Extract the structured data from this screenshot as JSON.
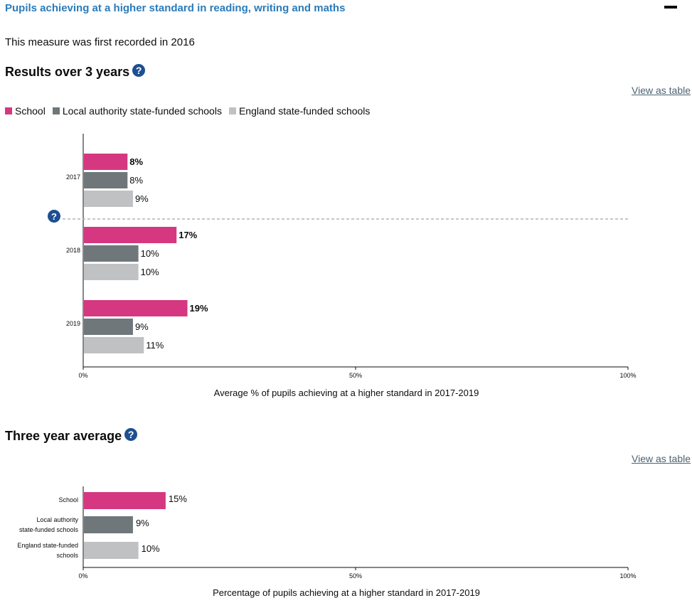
{
  "header": {
    "title": "Pupils achieving at a higher standard in reading, writing and maths"
  },
  "intro": "This measure was first recorded in 2016",
  "colors": {
    "school": "#d53880",
    "local_authority": "#6f777b",
    "england": "#bfc1c3",
    "link": "#2b7bb9",
    "help": "#1d4f91"
  },
  "results_section": {
    "title": "Results over 3 years",
    "help_icon": "question-circle-icon",
    "view_table": "View as table",
    "legend": [
      {
        "label": "School",
        "color": "#d53880"
      },
      {
        "label": "Local authority state-funded schools",
        "color": "#6f777b"
      },
      {
        "label": "England state-funded schools",
        "color": "#bfc1c3"
      }
    ]
  },
  "average_section": {
    "title": "Three year average",
    "help_icon": "question-circle-icon",
    "view_table": "View as table"
  },
  "chart_data": [
    {
      "type": "bar",
      "orientation": "horizontal",
      "categories": [
        "2017",
        "2018",
        "2019"
      ],
      "series": [
        {
          "name": "School",
          "values": [
            8,
            17,
            19
          ],
          "labels": [
            "8%",
            "17%",
            "19%"
          ],
          "bold": true
        },
        {
          "name": "Local authority state-funded schools",
          "values": [
            8,
            10,
            9
          ],
          "labels": [
            "8%",
            "10%",
            "9%"
          ],
          "bold": false
        },
        {
          "name": "England state-funded schools",
          "values": [
            9,
            10,
            11
          ],
          "labels": [
            "9%",
            "10%",
            "11%"
          ],
          "bold": false
        }
      ],
      "xlim": [
        0,
        100
      ],
      "xticks": [
        "0%",
        "50%",
        "100%"
      ],
      "xlabel": "Average % of pupils achieving at a higher standard in 2017-2019",
      "annotation": "dashed separator between 2017 and 2018 with help icon"
    },
    {
      "type": "bar",
      "orientation": "horizontal",
      "categories": [
        [
          "School"
        ],
        [
          "Local authority",
          "state-funded schools"
        ],
        [
          "England state-funded",
          "schools"
        ]
      ],
      "values": [
        15,
        9,
        10
      ],
      "labels": [
        "15%",
        "9%",
        "10%"
      ],
      "xlim": [
        0,
        100
      ],
      "xticks": [
        "0%",
        "50%",
        "100%"
      ],
      "xlabel": "Percentage of pupils achieving at a higher standard in 2017-2019"
    }
  ]
}
